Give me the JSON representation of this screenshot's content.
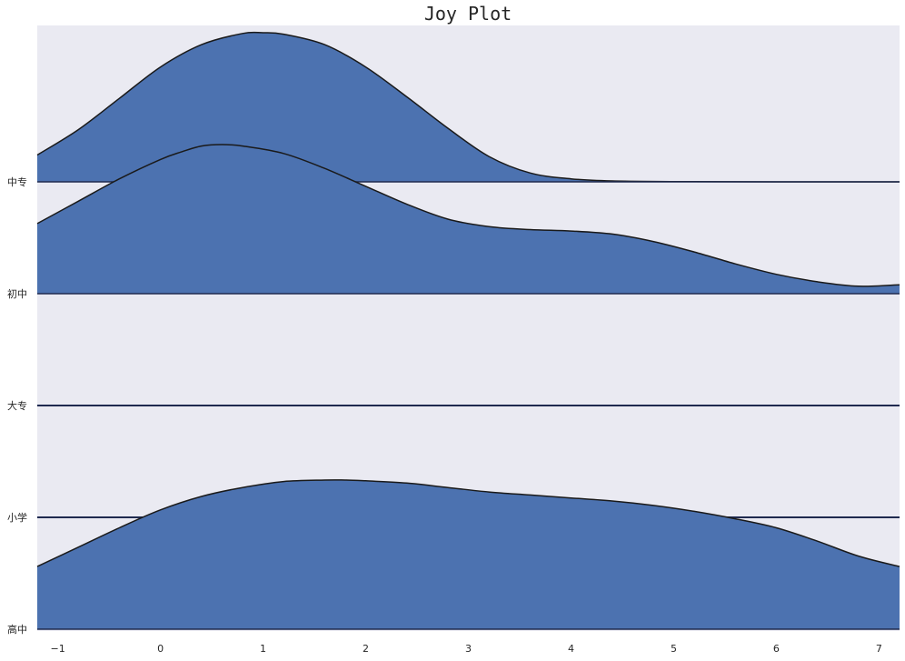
{
  "chart_data": {
    "type": "area",
    "title": "Joy Plot",
    "xlabel": "",
    "ylabel": "",
    "xlim": [
      -1.2,
      7.2
    ],
    "x_ticks": [
      -1,
      0,
      1,
      2,
      3,
      4,
      5,
      6,
      7
    ],
    "x_tick_labels": [
      "−1",
      "0",
      "1",
      "2",
      "3",
      "4",
      "5",
      "6",
      "7"
    ],
    "grid": false,
    "legend": "none",
    "colors": {
      "fill": "#4c72b0",
      "line": "#1a1a1a",
      "background": "#eaeaf2",
      "flat_line": "#1f2a4f"
    },
    "series": [
      {
        "name": "中专",
        "x": [
          -1.2,
          -0.8,
          -0.4,
          0,
          0.4,
          0.8,
          1.0,
          1.2,
          1.6,
          2.0,
          2.4,
          2.8,
          3.2,
          3.6,
          4.0,
          4.4,
          5.0,
          6.0,
          7.2
        ],
        "y": [
          0.18,
          0.35,
          0.56,
          0.77,
          0.92,
          0.995,
          1.0,
          0.99,
          0.92,
          0.77,
          0.57,
          0.36,
          0.17,
          0.06,
          0.02,
          0.006,
          0.002,
          0.0,
          0.0
        ]
      },
      {
        "name": "初中",
        "x": [
          -1.2,
          -0.8,
          -0.4,
          0,
          0.2,
          0.4,
          0.6,
          0.8,
          1.2,
          1.6,
          2.0,
          2.4,
          2.8,
          3.2,
          3.6,
          4.0,
          4.4,
          4.8,
          5.2,
          5.6,
          6.0,
          6.4,
          6.8,
          7.2
        ],
        "y": [
          0.47,
          0.62,
          0.77,
          0.9,
          0.95,
          0.99,
          1.0,
          0.99,
          0.94,
          0.84,
          0.72,
          0.6,
          0.5,
          0.45,
          0.43,
          0.42,
          0.4,
          0.35,
          0.28,
          0.2,
          0.13,
          0.08,
          0.05,
          0.06
        ]
      },
      {
        "name": "大专",
        "x": [
          -1.2,
          7.2
        ],
        "y": [
          0.0,
          0.0
        ]
      },
      {
        "name": "小学",
        "x": [
          -1.2,
          7.2
        ],
        "y": [
          0.0,
          0.0
        ]
      },
      {
        "name": "高中",
        "x": [
          -1.2,
          -0.8,
          -0.4,
          0,
          0.4,
          0.8,
          1.2,
          1.6,
          1.8,
          2.0,
          2.4,
          2.8,
          3.2,
          3.6,
          4.0,
          4.4,
          4.8,
          5.2,
          5.6,
          6.0,
          6.4,
          6.8,
          7.2
        ],
        "y": [
          0.42,
          0.55,
          0.68,
          0.8,
          0.89,
          0.95,
          0.99,
          1.0,
          1.0,
          0.995,
          0.98,
          0.95,
          0.92,
          0.9,
          0.88,
          0.86,
          0.83,
          0.79,
          0.74,
          0.68,
          0.59,
          0.49,
          0.42
        ]
      }
    ]
  }
}
